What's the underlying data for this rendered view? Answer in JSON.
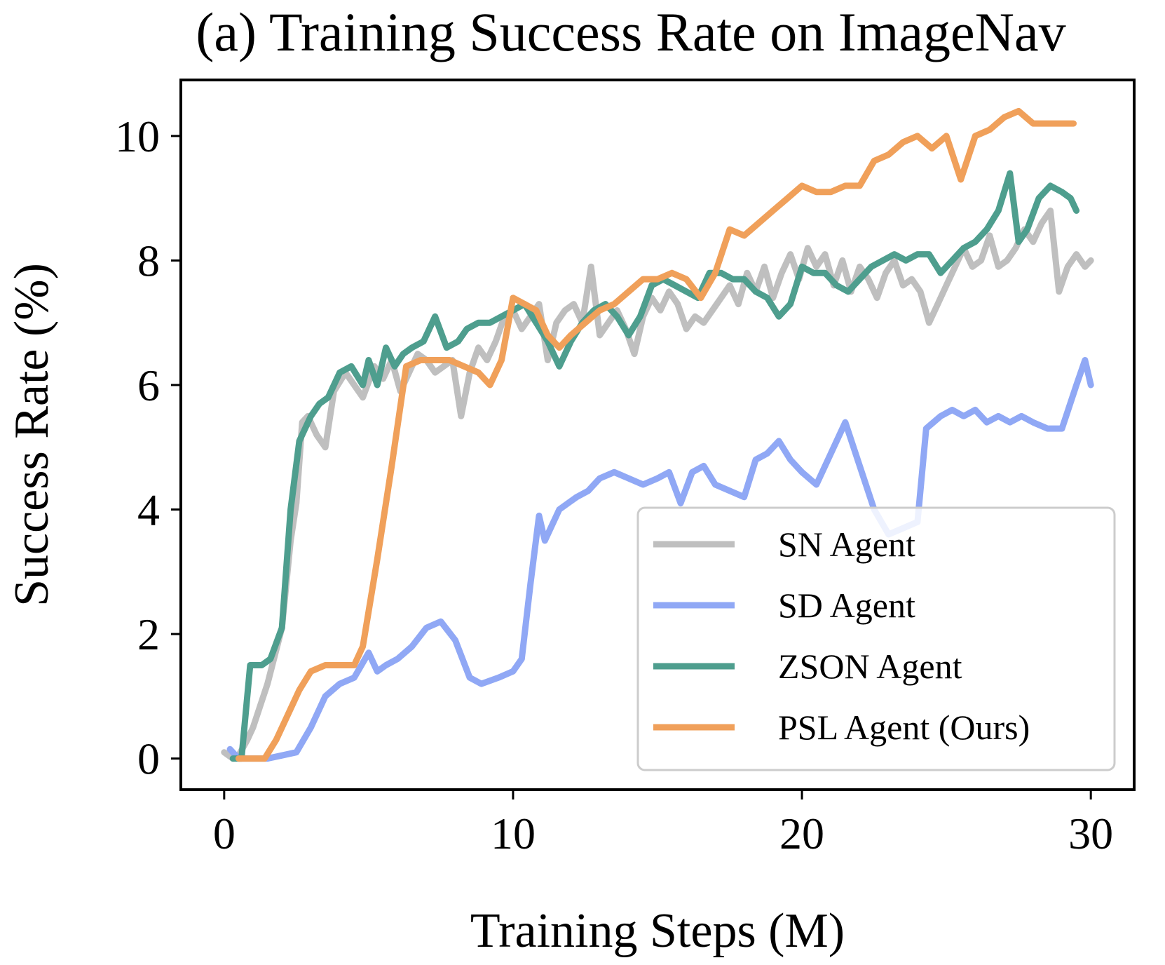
{
  "chart_data": {
    "type": "line",
    "title": "(a) Training Success Rate on ImageNav",
    "xlabel": "Training Steps (M)",
    "ylabel": "Success Rate (%)",
    "xlim": [
      -1.5,
      31.5
    ],
    "ylim": [
      -0.5,
      10.9
    ],
    "xticks": [
      0,
      10,
      20,
      30
    ],
    "yticks": [
      0,
      2,
      4,
      6,
      8,
      10
    ],
    "legend_position": "lower-right",
    "grid": false,
    "series": [
      {
        "name": "SN Agent",
        "color": "#bfbfbf",
        "x": [
          0,
          0.3,
          0.5,
          0.8,
          1.0,
          1.5,
          2.0,
          2.3,
          2.5,
          2.7,
          2.9,
          3.2,
          3.5,
          3.8,
          4.2,
          4.5,
          4.8,
          5.2,
          5.5,
          5.8,
          6.1,
          6.4,
          6.7,
          7.0,
          7.3,
          7.6,
          7.9,
          8.2,
          8.5,
          8.8,
          9.1,
          9.4,
          9.7,
          10.0,
          10.3,
          10.6,
          10.9,
          11.2,
          11.5,
          11.8,
          12.1,
          12.4,
          12.7,
          13.0,
          13.3,
          13.6,
          13.9,
          14.2,
          14.5,
          14.8,
          15.1,
          15.4,
          15.7,
          16.0,
          16.3,
          16.6,
          16.9,
          17.2,
          17.5,
          17.8,
          18.1,
          18.4,
          18.7,
          19.0,
          19.3,
          19.6,
          19.9,
          20.2,
          20.5,
          20.8,
          21.1,
          21.4,
          21.7,
          22.0,
          22.3,
          22.6,
          22.9,
          23.2,
          23.5,
          23.8,
          24.1,
          24.4,
          24.7,
          25.0,
          25.3,
          25.6,
          25.9,
          26.2,
          26.5,
          26.8,
          27.1,
          27.4,
          27.7,
          28.0,
          28.3,
          28.6,
          28.9,
          29.2,
          29.5,
          29.8,
          30.0
        ],
        "y": [
          0.1,
          0.0,
          0.05,
          0.3,
          0.5,
          1.2,
          2.1,
          3.5,
          4.1,
          5.4,
          5.5,
          5.2,
          5.0,
          5.9,
          6.2,
          6.0,
          5.8,
          6.3,
          6.1,
          6.4,
          5.9,
          6.2,
          6.5,
          6.4,
          6.2,
          6.3,
          6.4,
          5.5,
          6.2,
          6.6,
          6.4,
          6.7,
          7.1,
          7.2,
          6.9,
          7.1,
          7.3,
          6.4,
          7.0,
          7.2,
          7.3,
          7.0,
          7.9,
          6.8,
          7.0,
          7.2,
          6.9,
          6.5,
          7.1,
          7.4,
          7.2,
          7.5,
          7.3,
          6.9,
          7.1,
          7.0,
          7.2,
          7.4,
          7.6,
          7.3,
          7.8,
          7.5,
          7.9,
          7.4,
          7.8,
          8.1,
          7.7,
          8.2,
          7.9,
          8.1,
          7.6,
          8.0,
          7.5,
          7.9,
          7.7,
          7.4,
          7.8,
          8.0,
          7.6,
          7.7,
          7.5,
          7.0,
          7.3,
          7.6,
          7.9,
          8.2,
          7.9,
          8.0,
          8.4,
          7.9,
          8.0,
          8.2,
          8.5,
          8.3,
          8.6,
          8.8,
          7.5,
          7.9,
          8.1,
          7.9,
          8.0
        ]
      },
      {
        "name": "SD Agent",
        "color": "#90a8f5",
        "x": [
          0.2,
          0.5,
          1.0,
          1.5,
          2.0,
          2.5,
          3.0,
          3.5,
          4.0,
          4.5,
          5.0,
          5.3,
          5.6,
          6.0,
          6.5,
          7.0,
          7.5,
          8.0,
          8.5,
          8.9,
          9.5,
          10.0,
          10.3,
          10.6,
          10.9,
          11.1,
          11.3,
          11.6,
          11.9,
          12.2,
          12.6,
          13.0,
          13.5,
          14.0,
          14.5,
          15.0,
          15.4,
          15.8,
          16.2,
          16.6,
          17.0,
          17.5,
          18.0,
          18.4,
          18.8,
          19.2,
          19.6,
          20.0,
          20.5,
          21.0,
          21.5,
          22.0,
          22.5,
          23.0,
          23.5,
          24.0,
          24.3,
          24.8,
          25.2,
          25.6,
          26.0,
          26.4,
          26.8,
          27.2,
          27.6,
          28.0,
          28.5,
          29.0,
          29.5,
          29.8,
          30.0
        ],
        "y": [
          0.15,
          0.0,
          0.0,
          0.0,
          0.05,
          0.1,
          0.5,
          1.0,
          1.2,
          1.3,
          1.7,
          1.4,
          1.5,
          1.6,
          1.8,
          2.1,
          2.2,
          1.9,
          1.3,
          1.2,
          1.3,
          1.4,
          1.6,
          2.8,
          3.9,
          3.5,
          3.7,
          4.0,
          4.1,
          4.2,
          4.3,
          4.5,
          4.6,
          4.5,
          4.4,
          4.5,
          4.6,
          4.1,
          4.6,
          4.7,
          4.4,
          4.3,
          4.2,
          4.8,
          4.9,
          5.1,
          4.8,
          4.6,
          4.4,
          4.9,
          5.4,
          4.7,
          4.0,
          3.6,
          3.7,
          3.8,
          5.3,
          5.5,
          5.6,
          5.5,
          5.6,
          5.4,
          5.5,
          5.4,
          5.5,
          5.4,
          5.3,
          5.3,
          6.0,
          6.4,
          6.0
        ]
      },
      {
        "name": "ZSON Agent",
        "color": "#4e9e8e",
        "x": [
          0.3,
          0.6,
          0.9,
          1.3,
          1.6,
          2.0,
          2.3,
          2.6,
          3.0,
          3.3,
          3.6,
          4.0,
          4.4,
          4.8,
          5.0,
          5.3,
          5.6,
          5.9,
          6.2,
          6.5,
          6.9,
          7.3,
          7.7,
          8.1,
          8.4,
          8.8,
          9.2,
          9.6,
          10.0,
          10.4,
          10.8,
          11.2,
          11.6,
          12.0,
          12.4,
          12.8,
          13.2,
          13.6,
          14.0,
          14.4,
          14.8,
          15.2,
          15.6,
          16.0,
          16.4,
          16.8,
          17.2,
          17.6,
          18.0,
          18.4,
          18.8,
          19.2,
          19.6,
          20.0,
          20.4,
          20.8,
          21.2,
          21.6,
          22.0,
          22.4,
          22.8,
          23.2,
          23.6,
          24.0,
          24.4,
          24.8,
          25.2,
          25.6,
          26.0,
          26.4,
          26.8,
          27.2,
          27.5,
          27.8,
          28.2,
          28.6,
          29.0,
          29.3,
          29.5
        ],
        "y": [
          0.0,
          0.0,
          1.5,
          1.5,
          1.6,
          2.1,
          4.0,
          5.1,
          5.5,
          5.7,
          5.8,
          6.2,
          6.3,
          6.0,
          6.4,
          6.0,
          6.6,
          6.3,
          6.5,
          6.6,
          6.7,
          7.1,
          6.6,
          6.7,
          6.9,
          7.0,
          7.0,
          7.1,
          7.2,
          7.3,
          7.0,
          6.7,
          6.3,
          6.7,
          7.0,
          7.2,
          7.3,
          7.1,
          6.8,
          7.1,
          7.6,
          7.7,
          7.6,
          7.5,
          7.4,
          7.8,
          7.8,
          7.7,
          7.7,
          7.5,
          7.4,
          7.1,
          7.3,
          7.9,
          7.8,
          7.8,
          7.6,
          7.5,
          7.7,
          7.9,
          8.0,
          8.1,
          8.0,
          8.1,
          8.1,
          7.8,
          8.0,
          8.2,
          8.3,
          8.5,
          8.8,
          9.4,
          8.3,
          8.5,
          9.0,
          9.2,
          9.1,
          9.0,
          8.8
        ]
      },
      {
        "name": "PSL Agent (Ours)",
        "color": "#f0a05a",
        "x": [
          0.5,
          1.0,
          1.4,
          1.8,
          2.2,
          2.6,
          3.0,
          3.5,
          4.0,
          4.5,
          4.8,
          5.3,
          5.8,
          6.3,
          6.8,
          7.3,
          7.8,
          8.3,
          8.8,
          9.2,
          9.6,
          10.0,
          10.4,
          10.8,
          11.2,
          11.6,
          12.0,
          12.5,
          13.0,
          13.5,
          14.0,
          14.5,
          15.0,
          15.5,
          16.0,
          16.5,
          17.0,
          17.5,
          18.0,
          18.5,
          19.0,
          19.5,
          20.0,
          20.5,
          21.0,
          21.5,
          22.0,
          22.5,
          23.0,
          23.5,
          24.0,
          24.5,
          25.0,
          25.5,
          26.0,
          26.5,
          27.0,
          27.5,
          28.0,
          28.5,
          29.0,
          29.4
        ],
        "y": [
          0.0,
          0.0,
          0.0,
          0.3,
          0.7,
          1.1,
          1.4,
          1.5,
          1.5,
          1.5,
          1.8,
          3.2,
          4.7,
          6.3,
          6.4,
          6.4,
          6.4,
          6.3,
          6.2,
          6.0,
          6.4,
          7.4,
          7.3,
          7.2,
          6.8,
          6.6,
          6.8,
          7.0,
          7.2,
          7.3,
          7.5,
          7.7,
          7.7,
          7.8,
          7.7,
          7.4,
          7.8,
          8.5,
          8.4,
          8.6,
          8.8,
          9.0,
          9.2,
          9.1,
          9.1,
          9.2,
          9.2,
          9.6,
          9.7,
          9.9,
          10.0,
          9.8,
          10.0,
          9.3,
          10.0,
          10.1,
          10.3,
          10.4,
          10.2,
          10.2,
          10.2,
          10.2
        ]
      }
    ]
  }
}
